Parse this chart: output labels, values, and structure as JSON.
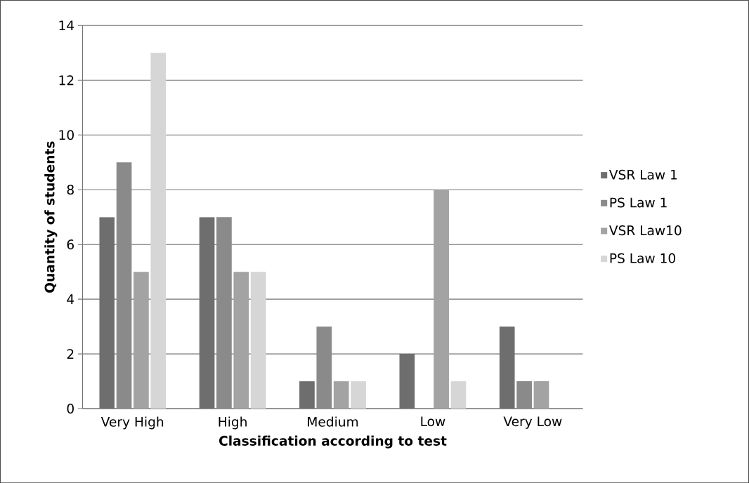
{
  "chart_data": {
    "type": "bar",
    "xlabel": "Classification  according to test",
    "ylabel": "Quantity of students",
    "categories": [
      "Very High",
      "High",
      "Medium",
      "Low",
      "Very Low"
    ],
    "series": [
      {
        "name": "VSR Law 1",
        "color": "#6e6e6e",
        "values": [
          7,
          7,
          1,
          2,
          3
        ]
      },
      {
        "name": "PS Law 1",
        "color": "#8a8a8a",
        "values": [
          9,
          7,
          3,
          0,
          1
        ]
      },
      {
        "name": "VSR Law10",
        "color": "#a3a3a3",
        "values": [
          5,
          5,
          1,
          8,
          1
        ]
      },
      {
        "name": "PS Law 10",
        "color": "#d6d6d6",
        "values": [
          13,
          5,
          1,
          1,
          0
        ]
      }
    ],
    "ylim": [
      0,
      14
    ],
    "yticks": [
      0,
      2,
      4,
      6,
      8,
      10,
      12,
      14
    ],
    "grid": "y",
    "legend": "right"
  }
}
